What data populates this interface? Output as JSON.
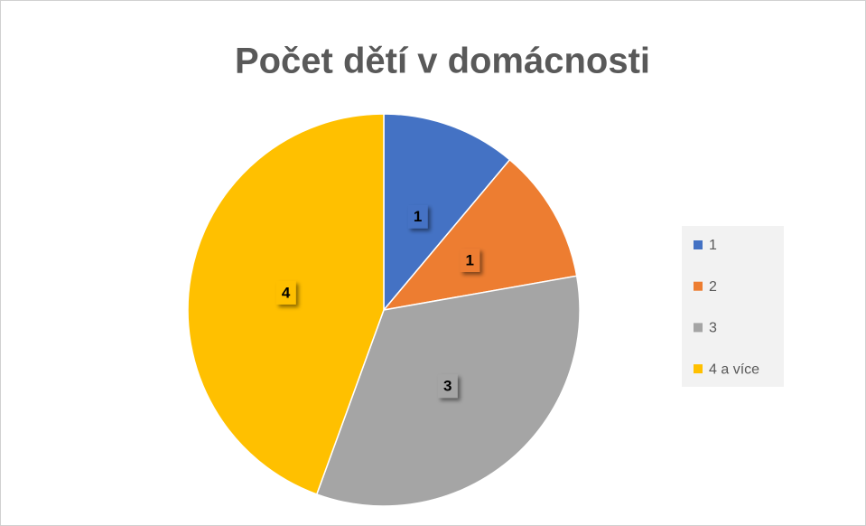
{
  "chart_data": {
    "type": "pie",
    "title": "Počet dětí v domácnosti",
    "categories": [
      "1",
      "2",
      "3",
      "4 a více"
    ],
    "values": [
      1,
      1,
      3,
      4
    ],
    "colors": [
      "#4472c4",
      "#ed7d31",
      "#a5a5a5",
      "#ffc000"
    ],
    "legend": "right"
  }
}
